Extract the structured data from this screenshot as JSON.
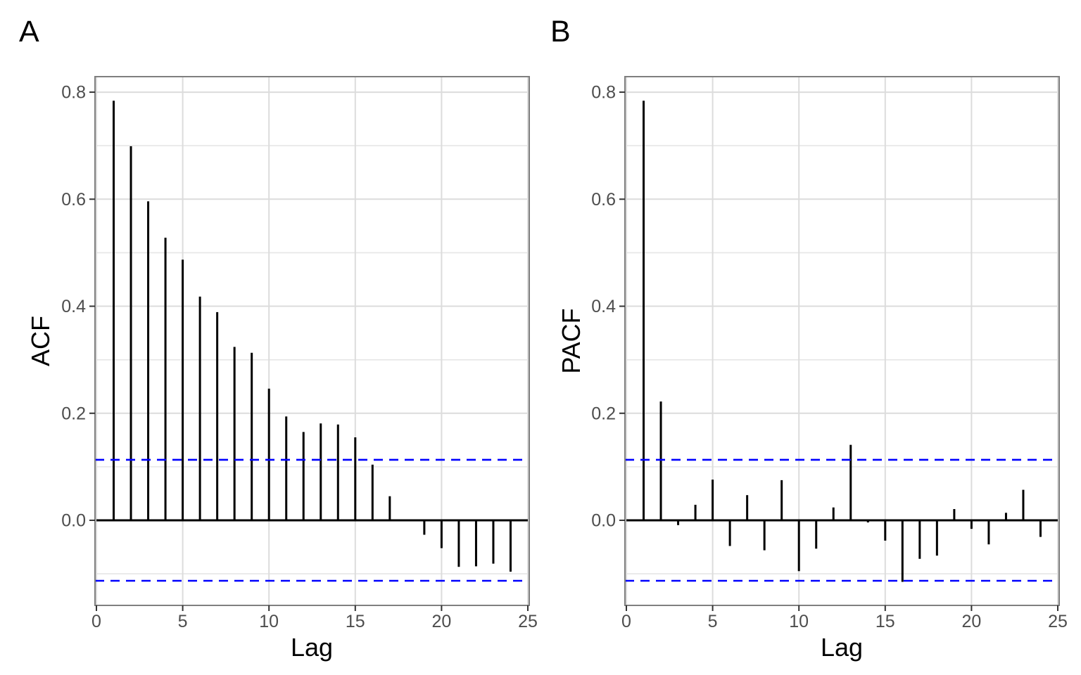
{
  "figure": {
    "panel_a": {
      "tag": "A",
      "ylabel": "ACF",
      "xlabel": "Lag"
    },
    "panel_b": {
      "tag": "B",
      "ylabel": "PACF",
      "xlabel": "Lag"
    },
    "colors": {
      "bar": "#000000",
      "zero_line": "#000000",
      "conf_line": "#0000FF",
      "grid_major": "#DCDCDC",
      "grid_minor": "#E6E6E6",
      "panel_border": "#7F7F7F",
      "tick_mark": "#333333",
      "tick_label": "#4D4D4D",
      "axis_title": "#000000",
      "background": "#FFFFFF"
    }
  },
  "chart_data": [
    {
      "type": "bar",
      "panel": "A",
      "title": "",
      "xlabel": "Lag",
      "ylabel": "ACF",
      "x": [
        1,
        2,
        3,
        4,
        5,
        6,
        7,
        8,
        9,
        10,
        11,
        12,
        13,
        14,
        15,
        16,
        17,
        18,
        19,
        20,
        21,
        22,
        23,
        24
      ],
      "values": [
        0.784,
        0.699,
        0.596,
        0.528,
        0.487,
        0.418,
        0.389,
        0.324,
        0.313,
        0.246,
        0.194,
        0.165,
        0.181,
        0.179,
        0.155,
        0.104,
        0.045,
        0.001,
        -0.027,
        -0.052,
        -0.087,
        -0.086,
        -0.081,
        -0.096
      ],
      "conf_bounds": [
        -0.113,
        0.113
      ],
      "xlim": [
        0,
        25
      ],
      "ylim": [
        -0.159,
        0.829
      ],
      "x_ticks": [
        0,
        5,
        10,
        15,
        20,
        25
      ],
      "x_tick_labels": [
        "0",
        "5",
        "10",
        "15",
        "20",
        "25"
      ],
      "y_ticks": [
        0.0,
        0.2,
        0.4,
        0.6,
        0.8
      ],
      "y_tick_labels": [
        "0.0",
        "0.2",
        "0.4",
        "0.6",
        "0.8"
      ],
      "y_grid_minor": [
        -0.1,
        0.1,
        0.3,
        0.5,
        0.7
      ],
      "grid": true,
      "legend": "none"
    },
    {
      "type": "bar",
      "panel": "B",
      "title": "",
      "xlabel": "Lag",
      "ylabel": "PACF",
      "x": [
        1,
        2,
        3,
        4,
        5,
        6,
        7,
        8,
        9,
        10,
        11,
        12,
        13,
        14,
        15,
        16,
        17,
        18,
        19,
        20,
        21,
        22,
        23,
        24
      ],
      "values": [
        0.784,
        0.222,
        -0.009,
        0.029,
        0.076,
        -0.048,
        0.047,
        -0.056,
        0.075,
        -0.095,
        -0.053,
        0.024,
        0.141,
        -0.004,
        -0.038,
        -0.115,
        -0.072,
        -0.066,
        0.021,
        -0.016,
        -0.045,
        0.014,
        0.057,
        -0.031
      ],
      "conf_bounds": [
        -0.113,
        0.113
      ],
      "xlim": [
        0,
        25
      ],
      "ylim": [
        -0.159,
        0.829
      ],
      "x_ticks": [
        0,
        5,
        10,
        15,
        20,
        25
      ],
      "x_tick_labels": [
        "0",
        "5",
        "10",
        "15",
        "20",
        "25"
      ],
      "y_ticks": [
        0.0,
        0.2,
        0.4,
        0.6,
        0.8
      ],
      "y_tick_labels": [
        "0.0",
        "0.2",
        "0.4",
        "0.6",
        "0.8"
      ],
      "y_grid_minor": [
        -0.1,
        0.1,
        0.3,
        0.5,
        0.7
      ],
      "grid": true,
      "legend": "none"
    }
  ]
}
